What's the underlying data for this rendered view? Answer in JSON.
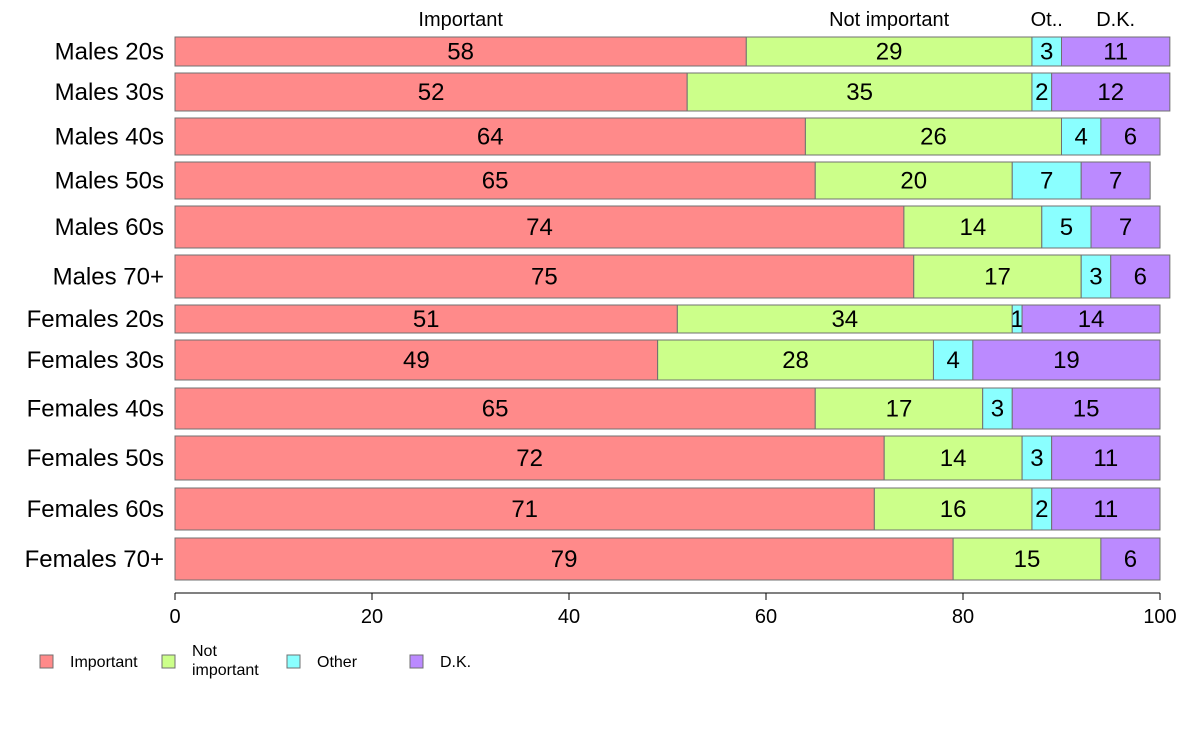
{
  "chart_data": {
    "type": "bar",
    "orientation": "horizontal",
    "stacked": true,
    "title": "",
    "xlabel": "",
    "ylabel": "",
    "xlim": [
      0,
      100
    ],
    "ticks": [
      0,
      20,
      40,
      60,
      80,
      100
    ],
    "grid": false,
    "legend_position": "bottom-left",
    "categories": [
      "Males 20s",
      "Males 30s",
      "Males 40s",
      "Males 50s",
      "Males 60s",
      "Males 70+",
      "Females 20s",
      "Females 30s",
      "Females 40s",
      "Females 50s",
      "Females 60s",
      "Females 70+"
    ],
    "series": [
      {
        "name": "Important",
        "legend_label": [
          "Important"
        ],
        "top_label": "Important",
        "color": "#ff8a8a",
        "values": [
          58,
          52,
          64,
          65,
          74,
          75,
          51,
          49,
          65,
          72,
          71,
          79
        ]
      },
      {
        "name": "Not important",
        "legend_label": [
          "Not",
          "important"
        ],
        "top_label": "Not important",
        "color": "#ccff8a",
        "values": [
          29,
          35,
          26,
          20,
          14,
          17,
          34,
          28,
          17,
          14,
          16,
          15
        ]
      },
      {
        "name": "Other",
        "legend_label": [
          "Other"
        ],
        "top_label": "Ot..",
        "color": "#8affff",
        "values": [
          3,
          2,
          4,
          7,
          5,
          3,
          1,
          4,
          3,
          3,
          2,
          0
        ]
      },
      {
        "name": "D.K.",
        "legend_label": [
          "D.K."
        ],
        "top_label": "D.K.",
        "color": "#bb8aff",
        "values": [
          11,
          12,
          6,
          7,
          7,
          6,
          14,
          19,
          15,
          11,
          11,
          6
        ]
      }
    ]
  }
}
